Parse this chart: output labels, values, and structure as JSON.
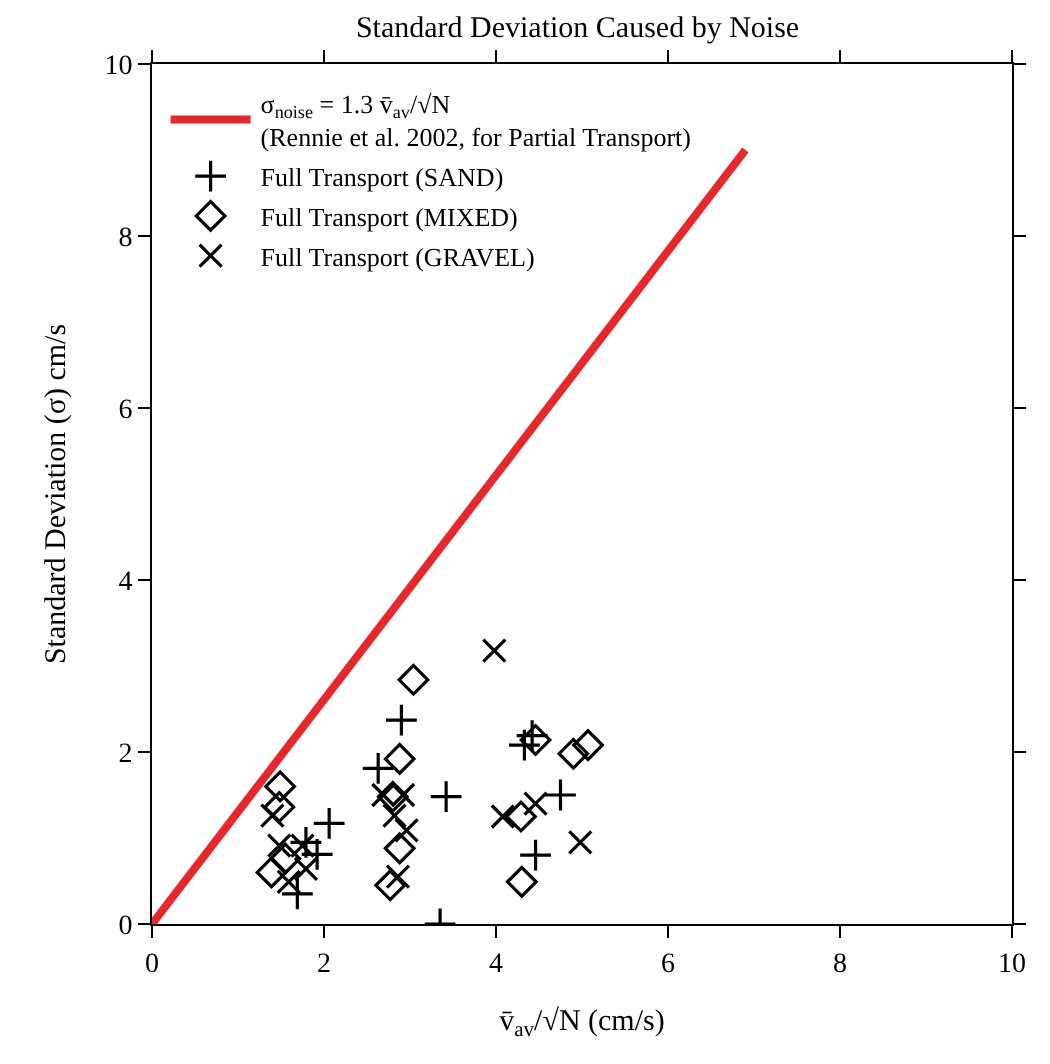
{
  "chart_data": {
    "type": "scatter",
    "title": "Standard Deviation Caused by Noise",
    "xlabel": "v̄$_{av}$/√N (cm/s)",
    "ylabel": "Standard Deviation (σ) cm/s",
    "xlim": [
      0,
      10
    ],
    "ylim": [
      0,
      10
    ],
    "xticks": [
      0,
      2,
      4,
      6,
      8,
      10
    ],
    "yticks": [
      0,
      2,
      4,
      6,
      8,
      10
    ],
    "grid": false,
    "legend": "top left",
    "series": [
      {
        "name": "σ$_{noise}$ = 1.3 v̄$_{av}$/√N\n(Rennie et al. 2002, for Partial Transport)",
        "type": "line",
        "color": "#e8272a",
        "line_style": "solid",
        "marker": "none",
        "x": [
          0,
          6.9
        ],
        "values": [
          0,
          9
        ]
      },
      {
        "name": "Full Transport (SAND)",
        "color": "#000000",
        "marker": "cross",
        "x": [
          3.35,
          2.9,
          2.63,
          3.42,
          2.06,
          1.69,
          1.92,
          1.79,
          4.33,
          4.42,
          4.75,
          4.46
        ],
        "values": [
          0.0,
          2.37,
          1.81,
          1.48,
          1.17,
          0.35,
          0.81,
          0.95,
          2.08,
          2.19,
          1.5,
          0.8
        ]
      },
      {
        "name": "Full Transport (MIXED)",
        "color": "#000000",
        "marker": "diamond",
        "x": [
          3.04,
          2.88,
          2.8,
          2.88,
          2.77,
          1.49,
          1.48,
          1.39,
          1.55,
          4.29,
          4.3,
          4.46,
          4.9,
          5.07
        ],
        "values": [
          2.84,
          1.92,
          1.48,
          0.88,
          0.45,
          1.6,
          1.36,
          0.6,
          0.76,
          1.25,
          0.49,
          2.14,
          1.98,
          2.08
        ]
      },
      {
        "name": "Full Transport (GRAVEL)",
        "color": "#000000",
        "marker": "x",
        "x": [
          3.98,
          4.08,
          4.46,
          4.98,
          2.69,
          2.92,
          2.82,
          2.96,
          2.86,
          1.4,
          1.48,
          1.59,
          1.75,
          1.79
        ],
        "values": [
          3.18,
          1.25,
          1.4,
          0.95,
          1.5,
          1.5,
          1.26,
          1.09,
          0.55,
          1.26,
          0.91,
          0.49,
          0.91,
          0.64
        ]
      }
    ]
  }
}
